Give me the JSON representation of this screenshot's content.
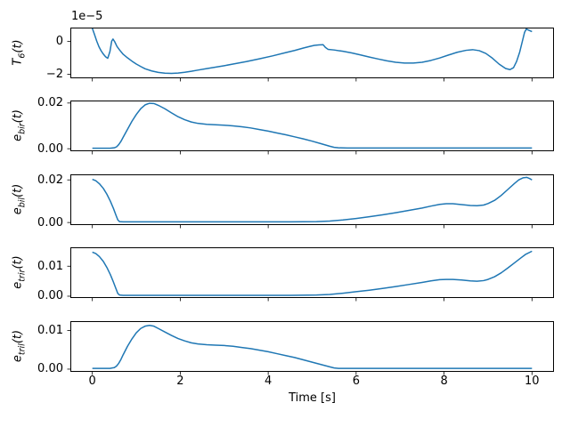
{
  "figure": {
    "xlabel": "Time [s]",
    "line_color": "#1f77b4",
    "xlim": [
      -0.5,
      10.5
    ],
    "xticks": [
      {
        "v": 0,
        "label": "0"
      },
      {
        "v": 2,
        "label": "2"
      },
      {
        "v": 4,
        "label": "4"
      },
      {
        "v": 6,
        "label": "6"
      },
      {
        "v": 8,
        "label": "8"
      },
      {
        "v": 10,
        "label": "10"
      }
    ]
  },
  "chart_data": [
    {
      "type": "line",
      "ylabel": {
        "main": "T",
        "sub": "6",
        "suffix": "(t)"
      },
      "offset_text": "1e−5",
      "y_unit": "1e-5",
      "ylim": [
        -2.25,
        0.85
      ],
      "yticks": [
        {
          "v": 0,
          "label": "0"
        },
        {
          "v": -2,
          "label": "−2"
        }
      ],
      "points": [
        [
          0,
          0.8
        ],
        [
          0.05,
          0.42
        ],
        [
          0.1,
          0.02
        ],
        [
          0.15,
          -0.32
        ],
        [
          0.2,
          -0.57
        ],
        [
          0.25,
          -0.77
        ],
        [
          0.3,
          -0.93
        ],
        [
          0.35,
          -1.03
        ],
        [
          0.4,
          -0.62
        ],
        [
          0.44,
          0.02
        ],
        [
          0.47,
          0.15
        ],
        [
          0.51,
          -0.02
        ],
        [
          0.56,
          -0.3
        ],
        [
          0.62,
          -0.52
        ],
        [
          0.7,
          -0.78
        ],
        [
          0.8,
          -1.0
        ],
        [
          0.9,
          -1.2
        ],
        [
          1.0,
          -1.38
        ],
        [
          1.1,
          -1.53
        ],
        [
          1.2,
          -1.67
        ],
        [
          1.35,
          -1.8
        ],
        [
          1.5,
          -1.89
        ],
        [
          1.65,
          -1.94
        ],
        [
          1.8,
          -1.95
        ],
        [
          1.95,
          -1.93
        ],
        [
          2.1,
          -1.88
        ],
        [
          2.25,
          -1.82
        ],
        [
          2.4,
          -1.75
        ],
        [
          2.6,
          -1.66
        ],
        [
          2.8,
          -1.57
        ],
        [
          3.0,
          -1.48
        ],
        [
          3.2,
          -1.38
        ],
        [
          3.5,
          -1.23
        ],
        [
          3.8,
          -1.06
        ],
        [
          4.1,
          -0.88
        ],
        [
          4.4,
          -0.68
        ],
        [
          4.6,
          -0.55
        ],
        [
          4.8,
          -0.4
        ],
        [
          4.95,
          -0.3
        ],
        [
          5.05,
          -0.24
        ],
        [
          5.15,
          -0.21
        ],
        [
          5.25,
          -0.2
        ],
        [
          5.3,
          -0.36
        ],
        [
          5.36,
          -0.48
        ],
        [
          5.5,
          -0.52
        ],
        [
          5.7,
          -0.6
        ],
        [
          5.9,
          -0.7
        ],
        [
          6.1,
          -0.82
        ],
        [
          6.3,
          -0.95
        ],
        [
          6.5,
          -1.07
        ],
        [
          6.7,
          -1.18
        ],
        [
          6.9,
          -1.27
        ],
        [
          7.1,
          -1.32
        ],
        [
          7.3,
          -1.32
        ],
        [
          7.5,
          -1.27
        ],
        [
          7.7,
          -1.16
        ],
        [
          7.9,
          -1.01
        ],
        [
          8.1,
          -0.83
        ],
        [
          8.3,
          -0.66
        ],
        [
          8.5,
          -0.54
        ],
        [
          8.65,
          -0.5
        ],
        [
          8.8,
          -0.56
        ],
        [
          8.95,
          -0.73
        ],
        [
          9.1,
          -1.02
        ],
        [
          9.25,
          -1.38
        ],
        [
          9.4,
          -1.65
        ],
        [
          9.5,
          -1.72
        ],
        [
          9.58,
          -1.6
        ],
        [
          9.65,
          -1.22
        ],
        [
          9.72,
          -0.65
        ],
        [
          9.78,
          0.0
        ],
        [
          9.83,
          0.55
        ],
        [
          9.87,
          0.76
        ],
        [
          9.92,
          0.7
        ],
        [
          10,
          0.6
        ]
      ]
    },
    {
      "type": "line",
      "ylabel": {
        "main": "e",
        "sub": "bir",
        "suffix": "(t)"
      },
      "ylim": [
        -0.0011,
        0.0211
      ],
      "yticks": [
        {
          "v": 0,
          "label": "0.00"
        },
        {
          "v": 0.02,
          "label": "0.02"
        }
      ],
      "points": [
        [
          0,
          0.0002
        ],
        [
          0.4,
          0.0002
        ],
        [
          0.5,
          0.0004
        ],
        [
          0.55,
          0.0008
        ],
        [
          0.6,
          0.0018
        ],
        [
          0.65,
          0.0032
        ],
        [
          0.7,
          0.005
        ],
        [
          0.8,
          0.0085
        ],
        [
          0.9,
          0.012
        ],
        [
          1.0,
          0.015
        ],
        [
          1.1,
          0.0175
        ],
        [
          1.2,
          0.0192
        ],
        [
          1.3,
          0.0199
        ],
        [
          1.4,
          0.0198
        ],
        [
          1.5,
          0.019
        ],
        [
          1.65,
          0.0175
        ],
        [
          1.8,
          0.0157
        ],
        [
          1.95,
          0.014
        ],
        [
          2.1,
          0.0127
        ],
        [
          2.25,
          0.0117
        ],
        [
          2.4,
          0.0111
        ],
        [
          2.6,
          0.0107
        ],
        [
          2.8,
          0.0105
        ],
        [
          3.0,
          0.0103
        ],
        [
          3.2,
          0.01
        ],
        [
          3.4,
          0.0096
        ],
        [
          3.6,
          0.0091
        ],
        [
          3.8,
          0.0084
        ],
        [
          4.0,
          0.0077
        ],
        [
          4.2,
          0.0069
        ],
        [
          4.4,
          0.0061
        ],
        [
          4.6,
          0.0052
        ],
        [
          4.8,
          0.0043
        ],
        [
          5.0,
          0.0033
        ],
        [
          5.2,
          0.0022
        ],
        [
          5.4,
          0.0011
        ],
        [
          5.5,
          0.0006
        ],
        [
          5.6,
          0.0004
        ],
        [
          5.8,
          0.0003
        ],
        [
          6.5,
          0.0003
        ],
        [
          7.5,
          0.0003
        ],
        [
          8.5,
          0.0003
        ],
        [
          10,
          0.0003
        ]
      ]
    },
    {
      "type": "line",
      "ylabel": {
        "main": "e",
        "sub": "bil",
        "suffix": "(t)"
      },
      "ylim": [
        -0.0012,
        0.0226
      ],
      "yticks": [
        {
          "v": 0,
          "label": "0.00"
        },
        {
          "v": 0.02,
          "label": "0.02"
        }
      ],
      "points": [
        [
          0,
          0.0203
        ],
        [
          0.08,
          0.0196
        ],
        [
          0.16,
          0.0182
        ],
        [
          0.25,
          0.016
        ],
        [
          0.33,
          0.0133
        ],
        [
          0.41,
          0.01
        ],
        [
          0.48,
          0.0066
        ],
        [
          0.54,
          0.0033
        ],
        [
          0.58,
          0.0012
        ],
        [
          0.62,
          0.0004
        ],
        [
          0.7,
          0.0003
        ],
        [
          1.5,
          0.0003
        ],
        [
          3.0,
          0.0003
        ],
        [
          4.5,
          0.0003
        ],
        [
          5.1,
          0.0004
        ],
        [
          5.4,
          0.0007
        ],
        [
          5.7,
          0.0012
        ],
        [
          6.0,
          0.0019
        ],
        [
          6.3,
          0.0027
        ],
        [
          6.6,
          0.0036
        ],
        [
          6.9,
          0.0046
        ],
        [
          7.2,
          0.0057
        ],
        [
          7.5,
          0.0068
        ],
        [
          7.7,
          0.0077
        ],
        [
          7.9,
          0.0085
        ],
        [
          8.05,
          0.0088
        ],
        [
          8.2,
          0.0088
        ],
        [
          8.4,
          0.0084
        ],
        [
          8.6,
          0.008
        ],
        [
          8.75,
          0.0079
        ],
        [
          8.9,
          0.0082
        ],
        [
          9.0,
          0.0089
        ],
        [
          9.15,
          0.0104
        ],
        [
          9.3,
          0.0127
        ],
        [
          9.45,
          0.0155
        ],
        [
          9.6,
          0.0183
        ],
        [
          9.7,
          0.02
        ],
        [
          9.8,
          0.021
        ],
        [
          9.88,
          0.0212
        ],
        [
          9.95,
          0.0206
        ],
        [
          10,
          0.02
        ]
      ]
    },
    {
      "type": "line",
      "ylabel": {
        "main": "e",
        "sub": "trir",
        "suffix": "(t)"
      },
      "ylim": [
        -0.0006,
        0.0163
      ],
      "yticks": [
        {
          "v": 0,
          "label": "0.00"
        },
        {
          "v": 0.01,
          "label": "0.01"
        }
      ],
      "points": [
        [
          0,
          0.0147
        ],
        [
          0.08,
          0.0142
        ],
        [
          0.16,
          0.0132
        ],
        [
          0.25,
          0.0116
        ],
        [
          0.33,
          0.0096
        ],
        [
          0.41,
          0.0072
        ],
        [
          0.48,
          0.0047
        ],
        [
          0.54,
          0.0024
        ],
        [
          0.58,
          0.0009
        ],
        [
          0.62,
          0.0004
        ],
        [
          0.7,
          0.0003
        ],
        [
          1.5,
          0.0003
        ],
        [
          3.0,
          0.0003
        ],
        [
          4.5,
          0.0003
        ],
        [
          5.1,
          0.0004
        ],
        [
          5.4,
          0.0006
        ],
        [
          5.7,
          0.001
        ],
        [
          6.0,
          0.0015
        ],
        [
          6.3,
          0.002
        ],
        [
          6.6,
          0.0026
        ],
        [
          6.9,
          0.0032
        ],
        [
          7.2,
          0.0039
        ],
        [
          7.5,
          0.0046
        ],
        [
          7.7,
          0.0051
        ],
        [
          7.9,
          0.0055
        ],
        [
          8.05,
          0.0056
        ],
        [
          8.2,
          0.0056
        ],
        [
          8.4,
          0.0054
        ],
        [
          8.6,
          0.0051
        ],
        [
          8.75,
          0.005
        ],
        [
          8.9,
          0.0052
        ],
        [
          9.0,
          0.0056
        ],
        [
          9.15,
          0.0065
        ],
        [
          9.3,
          0.0078
        ],
        [
          9.45,
          0.0094
        ],
        [
          9.6,
          0.0111
        ],
        [
          9.75,
          0.0128
        ],
        [
          9.85,
          0.0139
        ],
        [
          10,
          0.015
        ]
      ]
    },
    {
      "type": "line",
      "ylabel": {
        "main": "e",
        "sub": "tril",
        "suffix": "(t)"
      },
      "ylim": [
        -0.0007,
        0.0124
      ],
      "yticks": [
        {
          "v": 0,
          "label": "0.00"
        },
        {
          "v": 0.01,
          "label": "0.01"
        }
      ],
      "points": [
        [
          0,
          0.0002
        ],
        [
          0.4,
          0.0002
        ],
        [
          0.5,
          0.0004
        ],
        [
          0.55,
          0.0008
        ],
        [
          0.6,
          0.0015
        ],
        [
          0.65,
          0.0025
        ],
        [
          0.7,
          0.0037
        ],
        [
          0.8,
          0.0059
        ],
        [
          0.9,
          0.0078
        ],
        [
          1.0,
          0.0094
        ],
        [
          1.1,
          0.0105
        ],
        [
          1.2,
          0.0111
        ],
        [
          1.3,
          0.0113
        ],
        [
          1.4,
          0.0111
        ],
        [
          1.5,
          0.0105
        ],
        [
          1.65,
          0.0096
        ],
        [
          1.8,
          0.0087
        ],
        [
          1.95,
          0.0079
        ],
        [
          2.1,
          0.0073
        ],
        [
          2.25,
          0.0068
        ],
        [
          2.4,
          0.0065
        ],
        [
          2.6,
          0.0063
        ],
        [
          2.8,
          0.0062
        ],
        [
          3.0,
          0.0061
        ],
        [
          3.2,
          0.0059
        ],
        [
          3.4,
          0.0056
        ],
        [
          3.6,
          0.0053
        ],
        [
          3.8,
          0.0049
        ],
        [
          4.0,
          0.0045
        ],
        [
          4.2,
          0.004
        ],
        [
          4.4,
          0.0035
        ],
        [
          4.6,
          0.003
        ],
        [
          4.8,
          0.0024
        ],
        [
          5.0,
          0.0018
        ],
        [
          5.2,
          0.0012
        ],
        [
          5.4,
          0.0006
        ],
        [
          5.5,
          0.0003
        ],
        [
          5.6,
          0.0002
        ],
        [
          6.5,
          0.0002
        ],
        [
          7.5,
          0.0002
        ],
        [
          8.5,
          0.0002
        ],
        [
          10,
          0.0002
        ]
      ]
    }
  ]
}
